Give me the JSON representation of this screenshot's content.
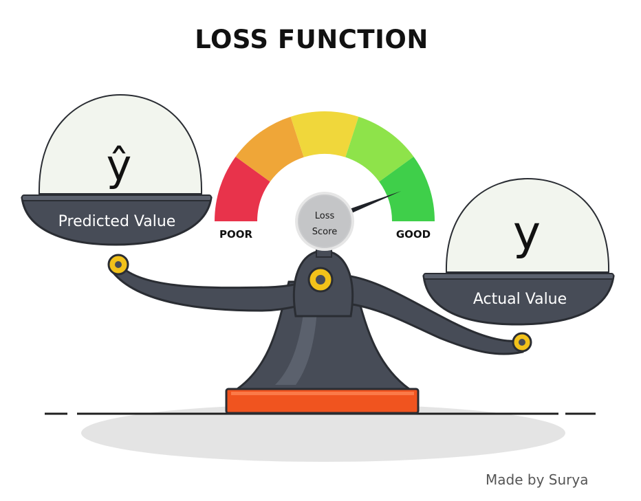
{
  "title": "LOSS FUNCTION",
  "credit": "Made by Surya",
  "gauge": {
    "poor_label": "POOR",
    "good_label": "GOOD",
    "center_label_line1": "Loss",
    "center_label_line2": "Score",
    "segment_colors": [
      "#e8334b",
      "#efa638",
      "#f0d73b",
      "#8ee34a",
      "#3fcf4a"
    ],
    "needle_level": 0.88
  },
  "left_pan": {
    "symbol": "ŷ",
    "label": "Predicted Value"
  },
  "right_pan": {
    "symbol": "y",
    "label": "Actual Value"
  },
  "colors": {
    "metal": "#474c57",
    "metal_dark": "#2a2d33",
    "pin": "#f2c21a",
    "base": "#f0541f",
    "dome": "#f2f5ee"
  }
}
